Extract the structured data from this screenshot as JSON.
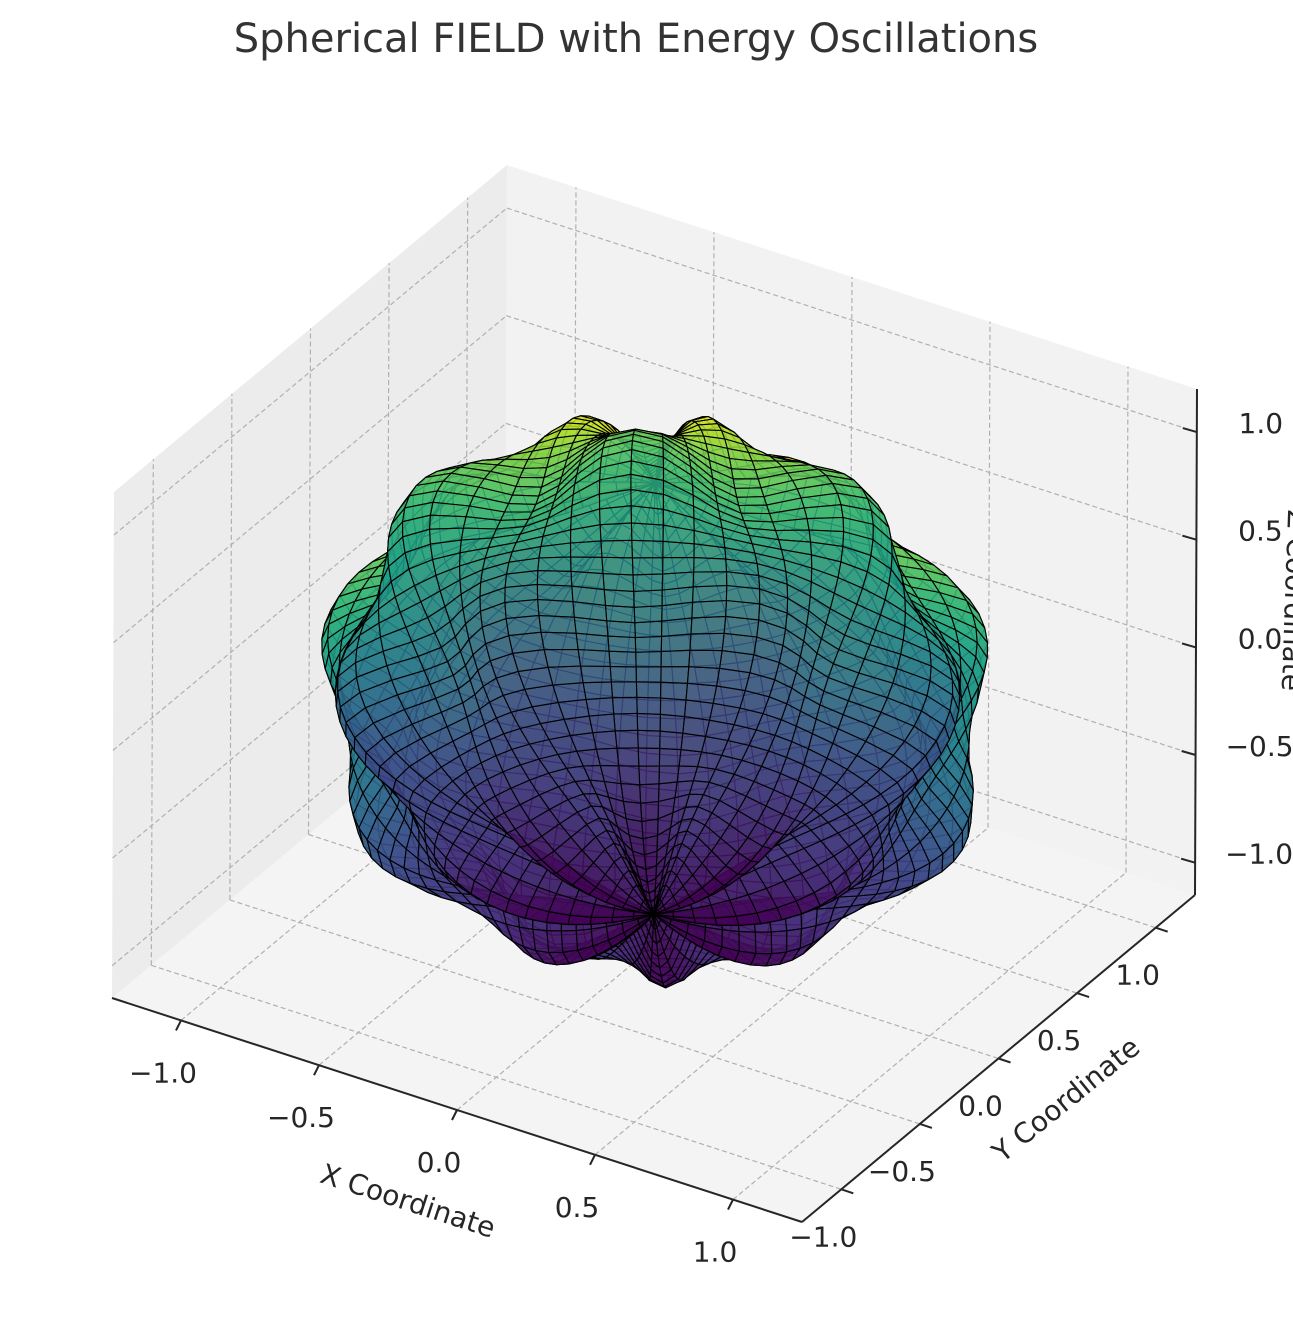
{
  "chart_data": {
    "type": "surface3d",
    "title": "Spherical FIELD with Energy Oscillations",
    "xlabel": "X Coordinate",
    "ylabel": "Y Coordinate",
    "zlabel": "Z Coordinate",
    "xlim": [
      -1.25,
      1.25
    ],
    "ylim": [
      -1.25,
      1.25
    ],
    "zlim": [
      -1.15,
      1.2
    ],
    "xticks": [
      "−1.0",
      "−0.5",
      "0.0",
      "0.5",
      "1.0"
    ],
    "yticks": [
      "−1.0",
      "−0.5",
      "0.0",
      "0.5",
      "1.0"
    ],
    "zticks": [
      "−1.0",
      "−0.5",
      "0.0",
      "0.5",
      "1.0"
    ],
    "tick_values": [
      -1.0,
      -0.5,
      0.0,
      0.5,
      1.0
    ],
    "surface": {
      "function": "r = 1 + 0.1 * sin(8 * phi) * sin(4 * theta)",
      "base_radius": 1.0,
      "amplitude": 0.1,
      "phi_frequency": 8,
      "theta_frequency": 4,
      "colormap": "viridis",
      "color_by": "z",
      "edgecolor": "#000000",
      "alpha": 0.85
    },
    "grid": true
  },
  "colors": {
    "pane_back": "#f2f2f2",
    "pane_side": "#ececec",
    "pane_floor": "#f4f4f4",
    "grid": "#b0b0b0",
    "axis_line": "#262626",
    "title": "#333333"
  }
}
